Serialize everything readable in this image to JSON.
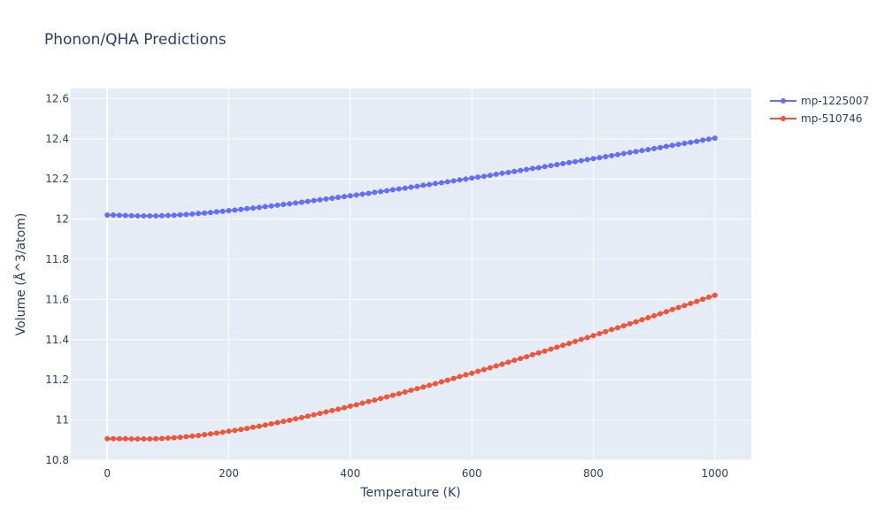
{
  "chart_data": {
    "type": "line",
    "title": "Phonon/QHA Predictions",
    "xlabel": "Temperature (K)",
    "ylabel": "Volume (Å^3/atom)",
    "xlim": [
      -60,
      1060
    ],
    "ylim": [
      10.8,
      12.65
    ],
    "x_ticks": [
      0,
      200,
      400,
      600,
      800,
      1000
    ],
    "y_ticks": [
      10.8,
      11,
      11.2,
      11.4,
      11.6,
      11.8,
      12,
      12.2,
      12.4,
      12.6
    ],
    "x_tick_labels": [
      "0",
      "200",
      "400",
      "600",
      "800",
      "1000"
    ],
    "y_tick_labels": [
      "10.8",
      "11",
      "11.2",
      "11.4",
      "11.6",
      "11.8",
      "12",
      "12.2",
      "12.4",
      "12.6"
    ],
    "grid": true,
    "legend_position": "top-right",
    "x_start": 0,
    "x_step": 10,
    "series": [
      {
        "name": "mp-1225007",
        "color": "#636efa",
        "values": [
          12.02,
          12.02,
          12.019,
          12.018,
          12.017,
          12.016,
          12.016,
          12.016,
          12.016,
          12.017,
          12.018,
          12.019,
          12.021,
          12.023,
          12.025,
          12.028,
          12.03,
          12.033,
          12.036,
          12.039,
          12.042,
          12.045,
          12.048,
          12.052,
          12.055,
          12.058,
          12.062,
          12.065,
          12.069,
          12.073,
          12.076,
          12.08,
          12.084,
          12.088,
          12.092,
          12.096,
          12.1,
          12.104,
          12.108,
          12.112,
          12.116,
          12.12,
          12.124,
          12.128,
          12.133,
          12.137,
          12.141,
          12.146,
          12.15,
          12.154,
          12.159,
          12.163,
          12.168,
          12.172,
          12.177,
          12.181,
          12.186,
          12.19,
          12.195,
          12.199,
          12.204,
          12.209,
          12.213,
          12.218,
          12.223,
          12.228,
          12.232,
          12.237,
          12.242,
          12.247,
          12.252,
          12.256,
          12.261,
          12.266,
          12.271,
          12.276,
          12.281,
          12.286,
          12.291,
          12.296,
          12.301,
          12.306,
          12.311,
          12.316,
          12.321,
          12.326,
          12.331,
          12.336,
          12.341,
          12.346,
          12.351,
          12.356,
          12.362,
          12.367,
          12.372,
          12.377,
          12.382,
          12.387,
          12.393,
          12.398,
          12.403
        ]
      },
      {
        "name": "mp-510746",
        "color": "#ef553b",
        "values": [
          10.907,
          10.907,
          10.907,
          10.907,
          10.906,
          10.906,
          10.906,
          10.906,
          10.907,
          10.908,
          10.91,
          10.912,
          10.914,
          10.917,
          10.92,
          10.923,
          10.927,
          10.931,
          10.935,
          10.939,
          10.944,
          10.948,
          10.953,
          10.958,
          10.964,
          10.969,
          10.975,
          10.981,
          10.987,
          10.993,
          10.999,
          11.006,
          11.012,
          11.019,
          11.026,
          11.033,
          11.04,
          11.047,
          11.054,
          11.061,
          11.069,
          11.076,
          11.084,
          11.092,
          11.099,
          11.107,
          11.115,
          11.123,
          11.131,
          11.139,
          11.148,
          11.156,
          11.164,
          11.173,
          11.181,
          11.19,
          11.198,
          11.207,
          11.216,
          11.225,
          11.233,
          11.242,
          11.251,
          11.26,
          11.269,
          11.278,
          11.288,
          11.297,
          11.306,
          11.315,
          11.325,
          11.334,
          11.343,
          11.353,
          11.362,
          11.372,
          11.381,
          11.391,
          11.401,
          11.41,
          11.42,
          11.43,
          11.44,
          11.45,
          11.459,
          11.469,
          11.479,
          11.489,
          11.499,
          11.509,
          11.519,
          11.529,
          11.539,
          11.55,
          11.56,
          11.57,
          11.58,
          11.59,
          11.601,
          11.611,
          11.621
        ]
      }
    ]
  }
}
